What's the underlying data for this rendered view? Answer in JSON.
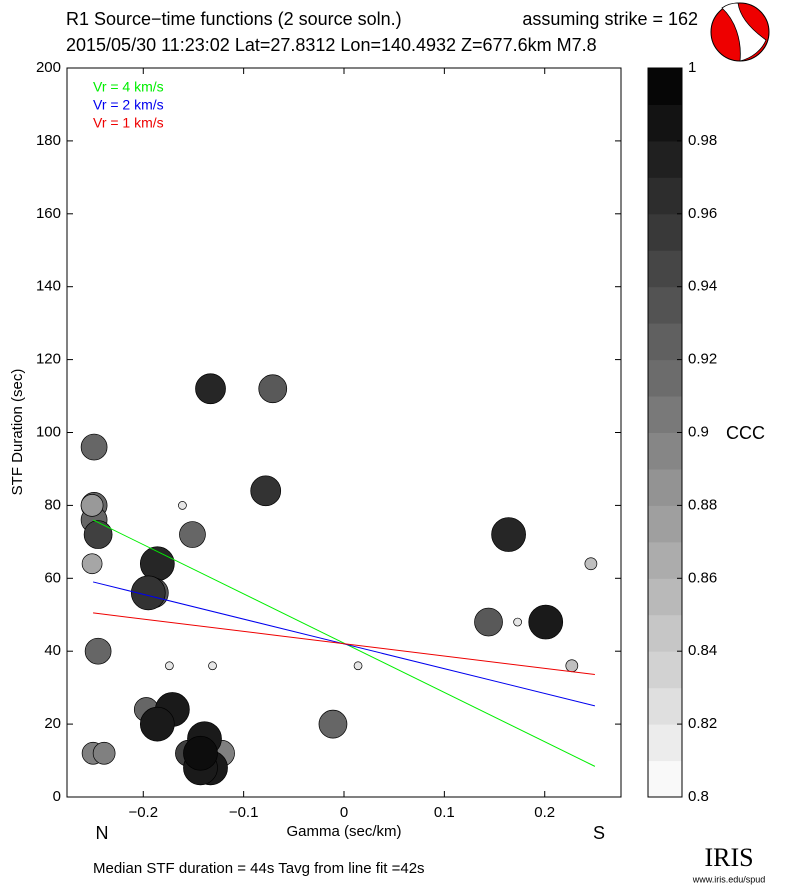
{
  "chart_data": {
    "type": "scatter",
    "title": "R1 Source−time functions (2 source soln.)",
    "strike_note": "assuming strike = 162",
    "subtitle": "2015/05/30 11:23:02  Lat=27.8312 Lon=140.4932  Z=677.6km  M7.8",
    "x_label": "Gamma (sec/km)",
    "y_label": "STF Duration (sec)",
    "left_label": "N",
    "right_label": "S",
    "footer": "Median STF duration = 44s    Tavg from line fit =42s",
    "logo": "IRIS",
    "logo_url": "www.iris.edu/spud",
    "xlim": [
      -0.276,
      0.276
    ],
    "ylim": [
      0,
      200
    ],
    "xticks": [
      {
        "value": -0.2,
        "label": "−0.2"
      },
      {
        "value": -0.1,
        "label": "−0.1"
      },
      0,
      0.1,
      0.2
    ],
    "yticks": [
      0,
      20,
      40,
      60,
      80,
      100,
      120,
      140,
      160,
      180,
      200
    ],
    "colorbar": {
      "label": "CCC",
      "clim": [
        0.8,
        1
      ],
      "ticks": [
        0.8,
        0.82,
        0.84,
        0.86,
        0.88,
        0.9,
        0.92,
        0.94,
        0.96,
        0.98,
        1
      ]
    },
    "points": {
      "x": [
        -0.249,
        -0.249,
        -0.249,
        -0.251,
        -0.245,
        -0.251,
        -0.245,
        -0.25,
        -0.239,
        -0.161,
        -0.151,
        -0.133,
        -0.071,
        -0.078,
        -0.186,
        -0.19,
        -0.195,
        -0.174,
        -0.131,
        -0.197,
        -0.171,
        -0.186,
        -0.011,
        -0.122,
        -0.155,
        -0.139,
        -0.133,
        -0.143,
        -0.143,
        0.014,
        0.164,
        0.144,
        0.173,
        0.201,
        0.246,
        0.227
      ],
      "values": [
        96,
        80,
        76,
        80,
        72,
        64,
        40,
        12,
        12,
        80,
        72,
        112,
        112,
        84,
        64,
        56,
        56,
        36,
        36,
        24,
        24,
        20,
        20,
        12,
        12,
        16,
        8,
        8,
        12,
        36,
        72,
        48,
        48,
        48,
        64,
        36
      ],
      "ccc": [
        0.92,
        0.92,
        0.92,
        0.88,
        0.95,
        0.87,
        0.92,
        0.9,
        0.9,
        0.82,
        0.92,
        0.97,
        0.93,
        0.96,
        0.97,
        0.93,
        0.96,
        0.82,
        0.82,
        0.92,
        0.98,
        0.98,
        0.92,
        0.9,
        0.95,
        0.98,
        0.98,
        0.98,
        0.99,
        0.82,
        0.97,
        0.93,
        0.82,
        0.98,
        0.85,
        0.85
      ],
      "sizes": [
        13,
        13,
        13,
        11,
        14,
        10,
        13,
        11,
        11,
        4,
        13,
        15,
        14,
        15,
        17,
        15,
        17,
        4,
        4,
        12,
        17,
        17,
        14,
        13,
        13,
        17,
        17,
        17,
        17,
        4,
        17,
        14,
        4,
        17,
        6,
        6
      ]
    },
    "series": [
      {
        "name": "Vr = 4 km/s",
        "color": "#00ee00",
        "x": [
          -0.25,
          0.25
        ],
        "values": [
          76,
          8.4
        ]
      },
      {
        "name": "Vr = 2 km/s",
        "color": "#0000ee",
        "x": [
          -0.25,
          0.25
        ],
        "values": [
          59,
          25
        ]
      },
      {
        "name": "Vr = 1 km/s",
        "color": "#ee0000",
        "x": [
          -0.25,
          0.25
        ],
        "values": [
          50.5,
          33.6
        ]
      }
    ]
  }
}
